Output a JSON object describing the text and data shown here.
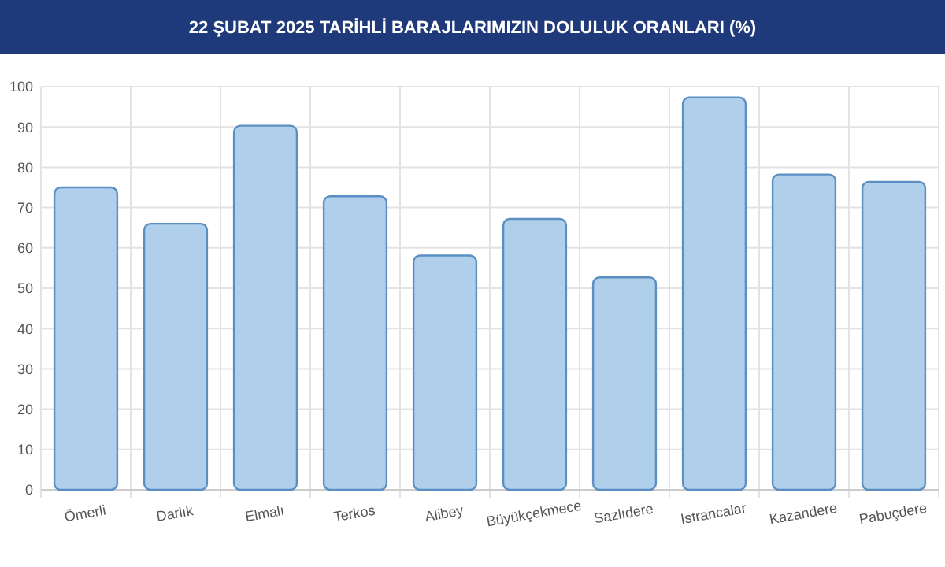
{
  "chart_data": {
    "type": "bar",
    "title": "22 ŞUBAT 2025 TARİHLİ BARAJLARIMIZIN DOLULUK ORANLARI (%)",
    "categories": [
      "Ömerli",
      "Darlık",
      "Elmalı",
      "Terkos",
      "Alibey",
      "Büyükçekmece",
      "Sazlıdere",
      "Istrancalar",
      "Kazandere",
      "Pabuçdere"
    ],
    "values": [
      75,
      66,
      90.3,
      72.8,
      58.1,
      67.2,
      52.7,
      97.3,
      78.2,
      76.4
    ],
    "color": "#b0cfea",
    "ylim": [
      0,
      100
    ],
    "yticks": [
      0,
      10,
      20,
      30,
      40,
      50,
      60,
      70,
      80,
      90,
      100
    ],
    "grid": true
  }
}
